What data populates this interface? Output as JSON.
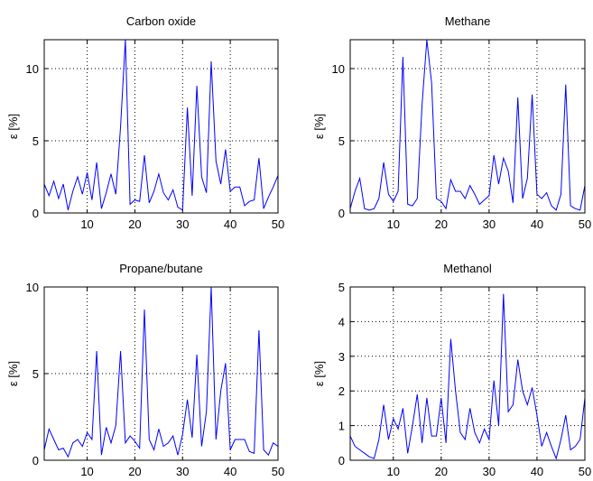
{
  "chart_data": [
    {
      "type": "line",
      "title": "Carbon oxide",
      "ylabel": "ε  [%]",
      "xlabel": "",
      "xlim": [
        1,
        50
      ],
      "ylim": [
        0,
        12
      ],
      "xticks": [
        10,
        20,
        30,
        40,
        50
      ],
      "yticks": [
        0,
        5,
        10
      ],
      "grid": true,
      "series": [
        {
          "color": "#0000ff",
          "x": [
            1,
            2,
            3,
            4,
            5,
            6,
            7,
            8,
            9,
            10,
            11,
            12,
            13,
            14,
            15,
            16,
            17,
            18,
            19,
            20,
            21,
            22,
            23,
            24,
            25,
            26,
            27,
            28,
            29,
            30,
            31,
            32,
            33,
            34,
            35,
            36,
            37,
            38,
            39,
            40,
            41,
            42,
            43,
            44,
            45,
            46,
            47,
            48,
            49,
            50
          ],
          "y": [
            2.0,
            1.2,
            2.2,
            1.0,
            2.0,
            0.2,
            1.5,
            2.5,
            1.3,
            2.8,
            0.9,
            3.5,
            0.3,
            1.4,
            2.7,
            1.3,
            6.0,
            12.0,
            0.6,
            0.9,
            0.8,
            4.0,
            0.7,
            1.5,
            2.7,
            1.4,
            0.9,
            1.6,
            0.4,
            0.2,
            7.3,
            1.2,
            8.8,
            2.5,
            1.4,
            10.5,
            3.6,
            2.0,
            4.4,
            1.5,
            1.8,
            1.8,
            0.5,
            0.8,
            0.9,
            3.8,
            0.3,
            1.1,
            1.8,
            2.6
          ]
        }
      ]
    },
    {
      "type": "line",
      "title": "Methane",
      "ylabel": "ε  [%]",
      "xlabel": "",
      "xlim": [
        1,
        50
      ],
      "ylim": [
        0,
        12
      ],
      "xticks": [
        10,
        20,
        30,
        40,
        50
      ],
      "yticks": [
        0,
        5,
        10
      ],
      "grid": true,
      "series": [
        {
          "color": "#0000ff",
          "x": [
            1,
            2,
            3,
            4,
            5,
            6,
            7,
            8,
            9,
            10,
            11,
            12,
            13,
            14,
            15,
            16,
            17,
            18,
            19,
            20,
            21,
            22,
            23,
            24,
            25,
            26,
            27,
            28,
            29,
            30,
            31,
            32,
            33,
            34,
            35,
            36,
            37,
            38,
            39,
            40,
            41,
            42,
            43,
            44,
            45,
            46,
            47,
            48,
            49,
            50
          ],
          "y": [
            0.3,
            1.5,
            2.4,
            0.3,
            0.2,
            0.3,
            1.0,
            3.5,
            1.3,
            0.8,
            1.5,
            10.8,
            0.6,
            0.5,
            1.0,
            7.5,
            12.0,
            9.0,
            1.0,
            0.8,
            0.3,
            2.3,
            1.5,
            1.5,
            1.0,
            1.9,
            1.3,
            0.6,
            0.9,
            1.2,
            4.0,
            2.0,
            3.8,
            2.9,
            0.7,
            8.0,
            1.0,
            2.4,
            8.2,
            1.3,
            1.0,
            1.4,
            0.5,
            0.2,
            1.3,
            8.9,
            0.5,
            0.3,
            0.2,
            1.9
          ]
        }
      ]
    },
    {
      "type": "line",
      "title": "Propane/butane",
      "ylabel": "ε  [%]",
      "xlabel": "",
      "xlim": [
        1,
        50
      ],
      "ylim": [
        0,
        10
      ],
      "xticks": [
        10,
        20,
        30,
        40,
        50
      ],
      "yticks": [
        0,
        5,
        10
      ],
      "grid": true,
      "series": [
        {
          "color": "#0000ff",
          "x": [
            1,
            2,
            3,
            4,
            5,
            6,
            7,
            8,
            9,
            10,
            11,
            12,
            13,
            14,
            15,
            16,
            17,
            18,
            19,
            20,
            21,
            22,
            23,
            24,
            25,
            26,
            27,
            28,
            29,
            30,
            31,
            32,
            33,
            34,
            35,
            36,
            37,
            38,
            39,
            40,
            41,
            42,
            43,
            44,
            45,
            46,
            47,
            48,
            49,
            50
          ],
          "y": [
            0.6,
            1.8,
            1.2,
            0.6,
            0.7,
            0.2,
            1.0,
            1.2,
            0.8,
            1.6,
            1.2,
            6.3,
            0.3,
            1.9,
            1.0,
            2.0,
            6.3,
            1.0,
            1.4,
            1.1,
            0.7,
            8.7,
            1.2,
            0.6,
            1.8,
            0.8,
            1.0,
            1.4,
            0.3,
            1.5,
            3.5,
            1.3,
            6.1,
            0.8,
            2.8,
            10.0,
            1.2,
            4.0,
            5.6,
            0.6,
            1.2,
            1.2,
            1.2,
            0.5,
            0.4,
            7.5,
            0.6,
            0.3,
            1.0,
            0.8
          ]
        }
      ]
    },
    {
      "type": "line",
      "title": "Methanol",
      "ylabel": "ε  [%]",
      "xlabel": "",
      "xlim": [
        1,
        50
      ],
      "ylim": [
        0,
        5
      ],
      "xticks": [
        10,
        20,
        30,
        40,
        50
      ],
      "yticks": [
        0,
        1,
        2,
        3,
        4,
        5
      ],
      "grid": true,
      "series": [
        {
          "color": "#0000ff",
          "x": [
            1,
            2,
            3,
            4,
            5,
            6,
            7,
            8,
            9,
            10,
            11,
            12,
            13,
            14,
            15,
            16,
            17,
            18,
            19,
            20,
            21,
            22,
            23,
            24,
            25,
            26,
            27,
            28,
            29,
            30,
            31,
            32,
            33,
            34,
            35,
            36,
            37,
            38,
            39,
            40,
            41,
            42,
            43,
            44,
            45,
            46,
            47,
            48,
            49,
            50
          ],
          "y": [
            0.7,
            0.4,
            0.3,
            0.2,
            0.1,
            0.05,
            0.6,
            1.6,
            0.6,
            1.2,
            0.9,
            1.5,
            0.2,
            1.0,
            1.9,
            0.5,
            1.8,
            0.7,
            0.7,
            1.8,
            0.5,
            3.5,
            2.0,
            0.8,
            0.6,
            1.5,
            0.8,
            0.5,
            0.9,
            0.6,
            2.3,
            1.0,
            4.8,
            1.4,
            1.6,
            2.9,
            2.0,
            1.6,
            2.1,
            1.3,
            0.4,
            0.8,
            0.4,
            0.05,
            0.6,
            1.3,
            0.3,
            0.4,
            0.6,
            1.8
          ]
        }
      ]
    }
  ]
}
